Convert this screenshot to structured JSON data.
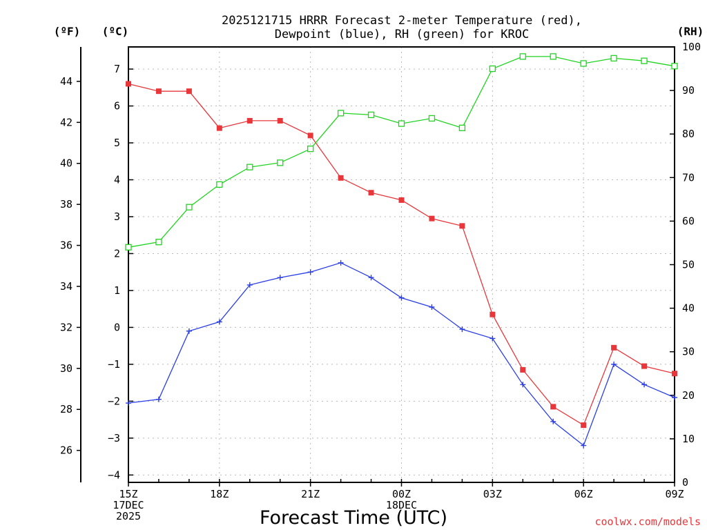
{
  "chart_data": {
    "type": "line",
    "title_lines": [
      "2025121715 HRRR Forecast 2-meter Temperature (red),",
      "Dewpoint (blue), RH (green) for KROC"
    ],
    "xlabel": "Forecast Time (UTC)",
    "credit": "coolwx.com/models",
    "axis_units": {
      "fahrenheit": "(ºF)",
      "celsius": "(ºC)",
      "rh": "(RH)"
    },
    "x": [
      "15Z",
      "16Z",
      "17Z",
      "18Z",
      "19Z",
      "20Z",
      "21Z",
      "22Z",
      "23Z",
      "00Z",
      "01Z",
      "02Z",
      "03Z",
      "04Z",
      "05Z",
      "06Z",
      "07Z",
      "08Z",
      "09Z"
    ],
    "x_tick_labels": [
      {
        "x": "15Z",
        "lines": [
          "15Z",
          "17DEC",
          "2025"
        ]
      },
      {
        "x": "18Z",
        "lines": [
          "18Z"
        ]
      },
      {
        "x": "21Z",
        "lines": [
          "21Z"
        ]
      },
      {
        "x": "00Z",
        "lines": [
          "00Z",
          "18DEC"
        ]
      },
      {
        "x": "03Z",
        "lines": [
          "03Z"
        ]
      },
      {
        "x": "06Z",
        "lines": [
          "06Z"
        ]
      },
      {
        "x": "09Z",
        "lines": [
          "09Z"
        ]
      }
    ],
    "y_left_c": {
      "ylim": [
        -4.2,
        7.6
      ],
      "ticks": [
        7,
        6,
        5,
        4,
        3,
        2,
        1,
        0,
        -1,
        -2,
        -3,
        -4
      ],
      "tick_labels": [
        "7",
        "6",
        "5",
        "4",
        "3",
        "2",
        "1",
        "0",
        "−1",
        "−2",
        "−3",
        "−4"
      ]
    },
    "y_left_f": {
      "ticks": [
        44,
        42,
        40,
        38,
        36,
        34,
        32,
        30,
        28,
        26
      ],
      "tick_labels": [
        "44",
        "42",
        "40",
        "38",
        "36",
        "34",
        "32",
        "30",
        "28",
        "26"
      ]
    },
    "y_right_rh": {
      "ylim": [
        0,
        100
      ],
      "ticks": [
        0,
        10,
        20,
        30,
        40,
        50,
        60,
        70,
        80,
        90,
        100
      ],
      "tick_labels": [
        "0",
        "10",
        "20",
        "30",
        "40",
        "50",
        "60",
        "70",
        "80",
        "90",
        "100"
      ]
    },
    "grid": true,
    "series": [
      {
        "key": "temperature",
        "axis": "c",
        "color": "#e8373b",
        "marker": "filled-square",
        "values": [
          6.6,
          6.4,
          6.4,
          5.4,
          5.6,
          5.6,
          5.2,
          4.05,
          3.65,
          3.45,
          2.95,
          2.75,
          0.35,
          -1.15,
          -2.15,
          -2.65,
          -0.55,
          -1.05,
          -1.25
        ]
      },
      {
        "key": "dewpoint",
        "axis": "c",
        "color": "#2a3ee8",
        "marker": "plus",
        "values": [
          -2.05,
          -1.95,
          -0.1,
          0.15,
          1.15,
          1.35,
          1.5,
          1.75,
          1.35,
          0.8,
          0.55,
          -0.05,
          -0.3,
          -1.55,
          -2.55,
          -3.2,
          -1.0,
          -1.55,
          -1.9
        ]
      },
      {
        "key": "rh",
        "axis": "rh",
        "color": "#1fd41f",
        "marker": "open-square",
        "values": [
          54,
          55.2,
          63.2,
          68.4,
          72.4,
          73.4,
          76.6,
          84.8,
          84.4,
          82.4,
          83.6,
          81.4,
          95,
          97.8,
          97.8,
          96.2,
          97.4,
          96.8,
          95.6
        ]
      }
    ]
  }
}
